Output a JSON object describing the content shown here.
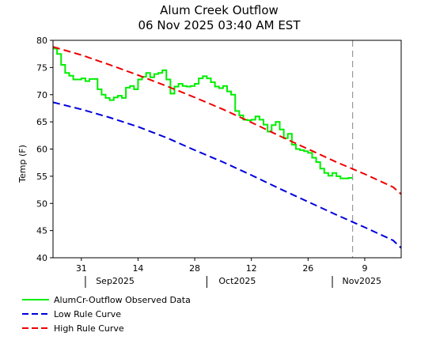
{
  "chart_data": {
    "type": "line",
    "title": "Alum Creek Outflow",
    "subtitle": "06 Nov 2025 03:40 AM EST",
    "ylabel": "Temp (F)",
    "xlabel": "",
    "x_range": [
      "2025-08-24",
      "2025-11-18"
    ],
    "ylim": [
      40,
      80
    ],
    "y_ticks": [
      40,
      45,
      50,
      55,
      60,
      65,
      70,
      75,
      80
    ],
    "x_day_ticks": [
      {
        "date": "2025-08-31",
        "label": "31"
      },
      {
        "date": "2025-09-14",
        "label": "14"
      },
      {
        "date": "2025-09-28",
        "label": "28"
      },
      {
        "date": "2025-10-12",
        "label": "12"
      },
      {
        "date": "2025-10-26",
        "label": "26"
      },
      {
        "date": "2025-11-09",
        "label": "9"
      }
    ],
    "x_month_ticks": [
      {
        "date": "2025-09-01",
        "label": "Sep2025"
      },
      {
        "date": "2025-10-01",
        "label": "Oct2025"
      },
      {
        "date": "2025-11-01",
        "label": "Nov2025"
      }
    ],
    "current_time_marker": "2025-11-06",
    "grid": false,
    "legend_position": "bottom-left",
    "series": [
      {
        "name": "AlumCr-Outflow Observed Data",
        "color": "#00ee00",
        "style": "solid",
        "points": [
          [
            "2025-08-24",
            78.5
          ],
          [
            "2025-08-25",
            77.5
          ],
          [
            "2025-08-26",
            75.5
          ],
          [
            "2025-08-27",
            74.0
          ],
          [
            "2025-08-28",
            73.5
          ],
          [
            "2025-08-29",
            72.8
          ],
          [
            "2025-08-30",
            72.8
          ],
          [
            "2025-08-31",
            73.0
          ],
          [
            "2025-09-01",
            72.5
          ],
          [
            "2025-09-02",
            72.9
          ],
          [
            "2025-09-03",
            72.9
          ],
          [
            "2025-09-04",
            71.0
          ],
          [
            "2025-09-05",
            70.0
          ],
          [
            "2025-09-06",
            69.4
          ],
          [
            "2025-09-07",
            69.0
          ],
          [
            "2025-09-08",
            69.5
          ],
          [
            "2025-09-09",
            69.8
          ],
          [
            "2025-09-10",
            69.4
          ],
          [
            "2025-09-11",
            71.3
          ],
          [
            "2025-09-12",
            71.6
          ],
          [
            "2025-09-13",
            71.0
          ],
          [
            "2025-09-14",
            72.8
          ],
          [
            "2025-09-15",
            73.3
          ],
          [
            "2025-09-16",
            74.0
          ],
          [
            "2025-09-17",
            73.2
          ],
          [
            "2025-09-18",
            73.8
          ],
          [
            "2025-09-19",
            74.0
          ],
          [
            "2025-09-20",
            74.5
          ],
          [
            "2025-09-21",
            72.8
          ],
          [
            "2025-09-22",
            70.2
          ],
          [
            "2025-09-23",
            71.5
          ],
          [
            "2025-09-24",
            72.0
          ],
          [
            "2025-09-25",
            71.6
          ],
          [
            "2025-09-26",
            71.5
          ],
          [
            "2025-09-27",
            71.6
          ],
          [
            "2025-09-28",
            72.0
          ],
          [
            "2025-09-29",
            73.0
          ],
          [
            "2025-09-30",
            73.4
          ],
          [
            "2025-10-01",
            73.0
          ],
          [
            "2025-10-02",
            72.3
          ],
          [
            "2025-10-03",
            71.5
          ],
          [
            "2025-10-04",
            71.2
          ],
          [
            "2025-10-05",
            71.6
          ],
          [
            "2025-10-06",
            70.6
          ],
          [
            "2025-10-07",
            70.0
          ],
          [
            "2025-10-08",
            67.0
          ],
          [
            "2025-10-09",
            66.2
          ],
          [
            "2025-10-10",
            65.4
          ],
          [
            "2025-10-11",
            65.3
          ],
          [
            "2025-10-12",
            65.4
          ],
          [
            "2025-10-13",
            66.0
          ],
          [
            "2025-10-14",
            65.4
          ],
          [
            "2025-10-15",
            64.5
          ],
          [
            "2025-10-16",
            63.2
          ],
          [
            "2025-10-17",
            64.4
          ],
          [
            "2025-10-18",
            65.0
          ],
          [
            "2025-10-19",
            63.6
          ],
          [
            "2025-10-20",
            62.0
          ],
          [
            "2025-10-21",
            62.8
          ],
          [
            "2025-10-22",
            60.8
          ],
          [
            "2025-10-23",
            60.0
          ],
          [
            "2025-10-24",
            59.8
          ],
          [
            "2025-10-25",
            59.6
          ],
          [
            "2025-10-26",
            59.3
          ],
          [
            "2025-10-27",
            58.4
          ],
          [
            "2025-10-28",
            57.6
          ],
          [
            "2025-10-29",
            56.4
          ],
          [
            "2025-10-30",
            55.6
          ],
          [
            "2025-10-31",
            55.1
          ],
          [
            "2025-11-01",
            55.6
          ],
          [
            "2025-11-02",
            55.0
          ],
          [
            "2025-11-03",
            54.6
          ],
          [
            "2025-11-04",
            54.6
          ],
          [
            "2025-11-05",
            54.7
          ]
        ]
      },
      {
        "name": "Low Rule Curve",
        "color": "#0000dd",
        "style": "dashed",
        "points": [
          [
            "2025-08-24",
            68.6
          ],
          [
            "2025-08-31",
            67.3
          ],
          [
            "2025-09-07",
            65.8
          ],
          [
            "2025-09-14",
            64.1
          ],
          [
            "2025-09-21",
            62.1
          ],
          [
            "2025-09-28",
            59.8
          ],
          [
            "2025-10-05",
            57.6
          ],
          [
            "2025-10-12",
            55.2
          ],
          [
            "2025-10-19",
            52.7
          ],
          [
            "2025-10-26",
            50.3
          ],
          [
            "2025-11-02",
            47.9
          ],
          [
            "2025-11-09",
            45.6
          ],
          [
            "2025-11-16",
            43.2
          ],
          [
            "2025-11-18",
            41.8
          ]
        ]
      },
      {
        "name": "High Rule Curve",
        "color": "#ee0000",
        "style": "dashed",
        "points": [
          [
            "2025-08-24",
            78.8
          ],
          [
            "2025-08-31",
            77.3
          ],
          [
            "2025-09-07",
            75.5
          ],
          [
            "2025-09-14",
            73.6
          ],
          [
            "2025-09-21",
            71.6
          ],
          [
            "2025-09-28",
            69.5
          ],
          [
            "2025-10-05",
            67.3
          ],
          [
            "2025-10-12",
            64.9
          ],
          [
            "2025-10-19",
            62.4
          ],
          [
            "2025-10-26",
            60.0
          ],
          [
            "2025-11-02",
            57.6
          ],
          [
            "2025-11-09",
            55.4
          ],
          [
            "2025-11-16",
            53.0
          ],
          [
            "2025-11-18",
            51.7
          ]
        ]
      }
    ]
  }
}
